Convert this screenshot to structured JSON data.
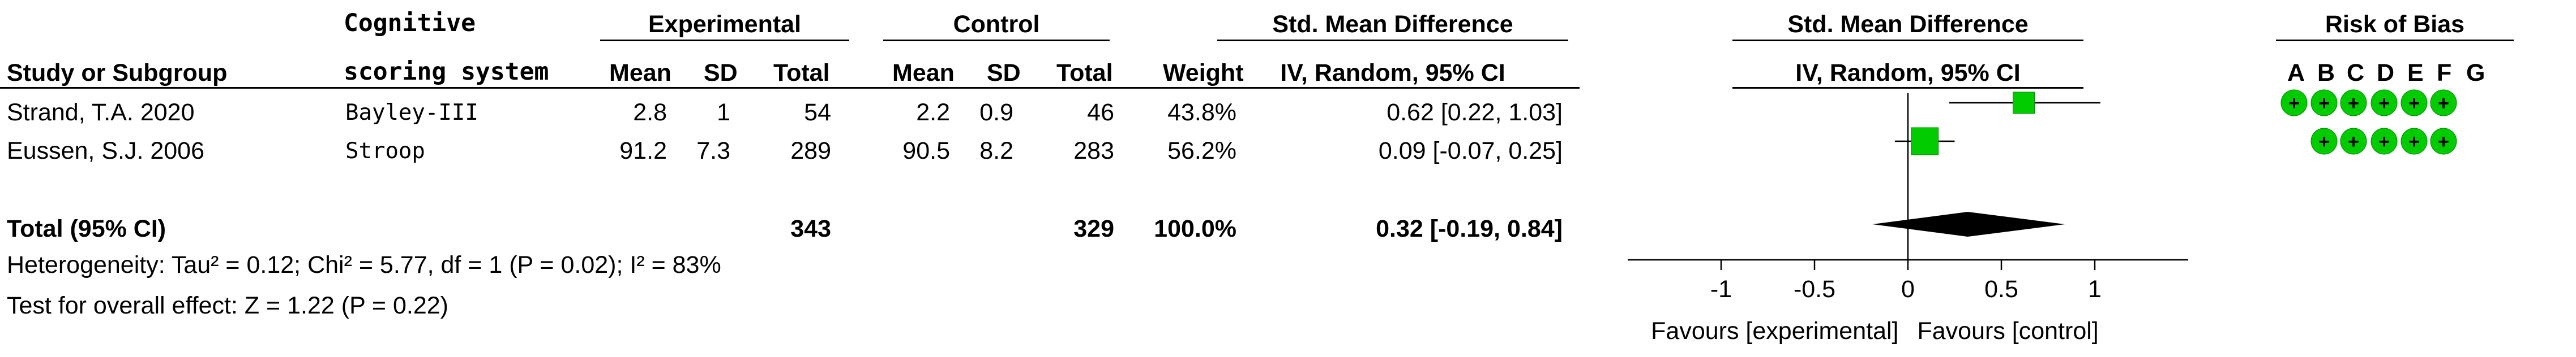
{
  "header": {
    "study_label": "Study or Subgroup",
    "scoring_label_line1": "Cognitive",
    "scoring_label_line2": "scoring system",
    "experimental_label": "Experimental",
    "control_label": "Control",
    "smd_label": "Std. Mean Difference",
    "smd_method": "IV, Random, 95% CI",
    "plot_smd_label": "Std. Mean Difference",
    "plot_smd_method": "IV, Random, 95% CI",
    "rob_label": "Risk of Bias",
    "mean_label": "Mean",
    "sd_label": "SD",
    "total_label": "Total",
    "weight_label": "Weight"
  },
  "chart_data": {
    "type": "forest",
    "columns": [
      "Study or Subgroup",
      "Cognitive scoring system",
      "Experimental Mean",
      "Experimental SD",
      "Experimental Total",
      "Control Mean",
      "Control SD",
      "Control Total",
      "Weight",
      "Std. Mean Difference IV, Random, 95% CI"
    ],
    "studies": [
      {
        "name": "Strand, T.A. 2020",
        "scoring": "Bayley-III",
        "exp_mean": "2.8",
        "exp_sd": "1",
        "exp_total": "54",
        "ctrl_mean": "2.2",
        "ctrl_sd": "0.9",
        "ctrl_total": "46",
        "weight": "43.8%",
        "ci_text": "0.62 [0.22, 1.03]",
        "smd": 0.62,
        "ci_low": 0.22,
        "ci_high": 1.03,
        "rob": [
          "+",
          "+",
          "+",
          "+",
          "+",
          "+",
          ""
        ]
      },
      {
        "name": "Eussen, S.J. 2006",
        "scoring": "Stroop",
        "exp_mean": "91.2",
        "exp_sd": "7.3",
        "exp_total": "289",
        "ctrl_mean": "90.5",
        "ctrl_sd": "8.2",
        "ctrl_total": "283",
        "weight": "56.2%",
        "ci_text": "0.09 [-0.07, 0.25]",
        "smd": 0.09,
        "ci_low": -0.07,
        "ci_high": 0.25,
        "rob": [
          "",
          "+",
          "+",
          "+",
          "+",
          "+",
          ""
        ]
      }
    ],
    "total": {
      "label": "Total (95% CI)",
      "exp_total": "343",
      "ctrl_total": "329",
      "weight": "100.0%",
      "ci_text": "0.32 [-0.19, 0.84]",
      "smd": 0.32,
      "ci_low": -0.19,
      "ci_high": 0.84
    },
    "heterogeneity": "Heterogeneity: Tau² = 0.12; Chi² = 5.77, df = 1 (P = 0.02); I² = 83%",
    "overall_effect": "Test for overall effect: Z = 1.22 (P = 0.22)",
    "xaxis": {
      "range": [
        -1.5,
        1.5
      ],
      "ticks": [
        -1,
        -0.5,
        0,
        0.5,
        1
      ],
      "tick_labels": [
        "-1",
        "-0.5",
        "0",
        "0.5",
        "1"
      ],
      "left_label": "Favours [experimental]",
      "right_label": "Favours [control]"
    },
    "rob_domains": [
      "A",
      "B",
      "C",
      "D",
      "E",
      "F",
      "G"
    ],
    "marker_color": "#00cc00",
    "diamond_color": "#000000"
  }
}
